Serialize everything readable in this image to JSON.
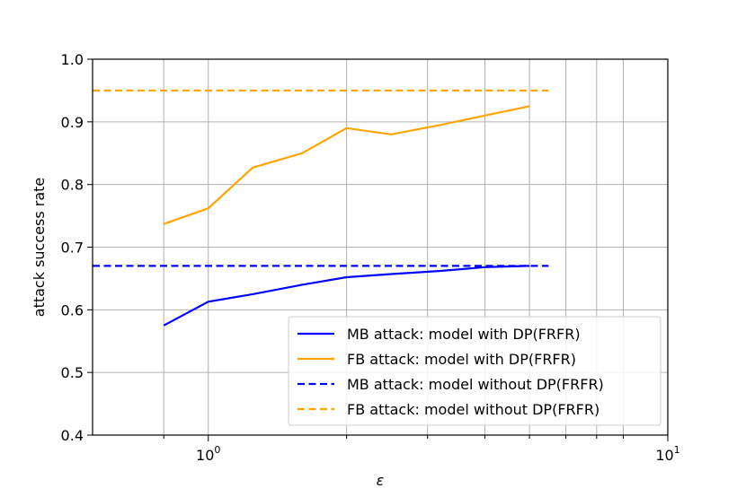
{
  "chart_data": {
    "type": "line",
    "xscale": "log",
    "xlabel": "ε",
    "ylabel": "attack success rate",
    "xlim": [
      0.56,
      10
    ],
    "ylim": [
      0.4,
      1.0
    ],
    "x_major_ticks": [
      {
        "value": 1,
        "base": "10",
        "exp": "0"
      },
      {
        "value": 10,
        "base": "10",
        "exp": "1"
      }
    ],
    "x_minor_ticks": [
      0.8,
      2,
      3,
      4,
      5,
      6,
      7,
      8
    ],
    "y_ticks": [
      {
        "value": 0.4,
        "label": "0.4"
      },
      {
        "value": 0.5,
        "label": "0.5"
      },
      {
        "value": 0.6,
        "label": "0.6"
      },
      {
        "value": 0.7,
        "label": "0.7"
      },
      {
        "value": 0.8,
        "label": "0.8"
      },
      {
        "value": 0.9,
        "label": "0.9"
      },
      {
        "value": 1.0,
        "label": "1.0"
      }
    ],
    "grid": true,
    "legend_position": "lower-right",
    "series": [
      {
        "name": "MB attack: model with DP(FRFR)",
        "color": "#0000ff",
        "style": "solid",
        "x": [
          0.8,
          1,
          1.25,
          1.6,
          2,
          2.5,
          3.2,
          4,
          5
        ],
        "y": [
          0.575,
          0.613,
          0.625,
          0.64,
          0.652,
          0.657,
          0.662,
          0.668,
          0.67
        ]
      },
      {
        "name": "FB attack: model with DP(FRFR)",
        "color": "#ffa500",
        "style": "solid",
        "x": [
          0.8,
          1,
          1.25,
          1.6,
          2,
          2.5,
          3.2,
          4,
          5
        ],
        "y": [
          0.737,
          0.762,
          0.827,
          0.85,
          0.89,
          0.88,
          0.895,
          0.91,
          0.925
        ]
      },
      {
        "name": "MB attack: model without DP(FRFR)",
        "color": "#0000ff",
        "style": "dashed",
        "x": [
          0.56,
          5.5
        ],
        "y": [
          0.67,
          0.67
        ]
      },
      {
        "name": "FB attack: model without DP(FRFR)",
        "color": "#ffa500",
        "style": "dashed",
        "x": [
          0.56,
          5.5
        ],
        "y": [
          0.95,
          0.95
        ]
      }
    ]
  }
}
